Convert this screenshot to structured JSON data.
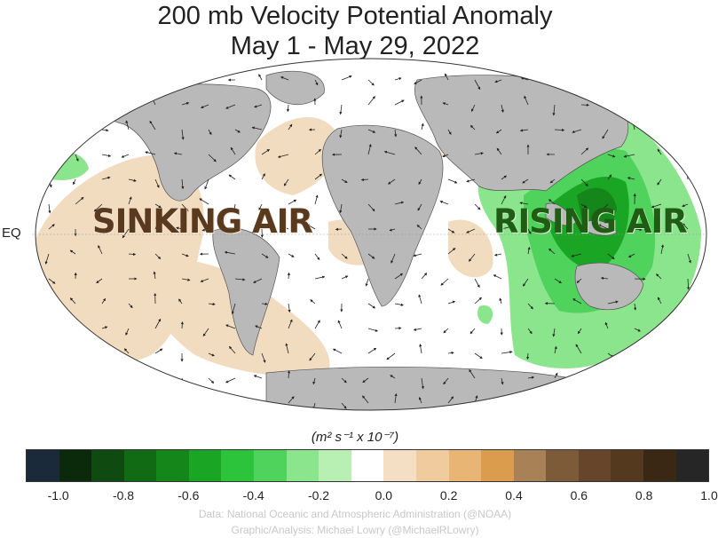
{
  "title_line1": "200 mb Velocity Potential Anomaly",
  "title_line2": "May 1 - May 29, 2022",
  "equator_label": "EQ",
  "labels": {
    "sinking": "SINKING AIR",
    "rising": "RISING AIR"
  },
  "colorbar": {
    "units": "(m² s⁻¹ x 10⁻⁷)",
    "colors": [
      "#1a2a3a",
      "#0b2a0b",
      "#0f4a10",
      "#116b14",
      "#14861a",
      "#1aa624",
      "#2bc43a",
      "#4fd35c",
      "#8be58d",
      "#b8f0b4",
      "#ffffff",
      "#f5dfc4",
      "#efcb9e",
      "#e9b574",
      "#dc9c4e",
      "#a98156",
      "#7e5b38",
      "#66452a",
      "#55391f",
      "#3a2814",
      "#262626"
    ],
    "ticks": [
      "-1.0",
      "-0.8",
      "-0.6",
      "-0.4",
      "-0.2",
      "0.0",
      "0.2",
      "0.4",
      "0.6",
      "0.8",
      "1.0"
    ]
  },
  "credits": {
    "data": "Data: National Oceanic and Atmospheric Administration (@NOAA)",
    "graphic": "Graphic/Analysis: Michael Lowry (@MichaelRLowry)"
  },
  "colors": {
    "land": "#b9b9b9",
    "ocean": "#ffffff",
    "sinking_fill": "#f2dcc0",
    "rising_fill": "#3cc24a"
  }
}
